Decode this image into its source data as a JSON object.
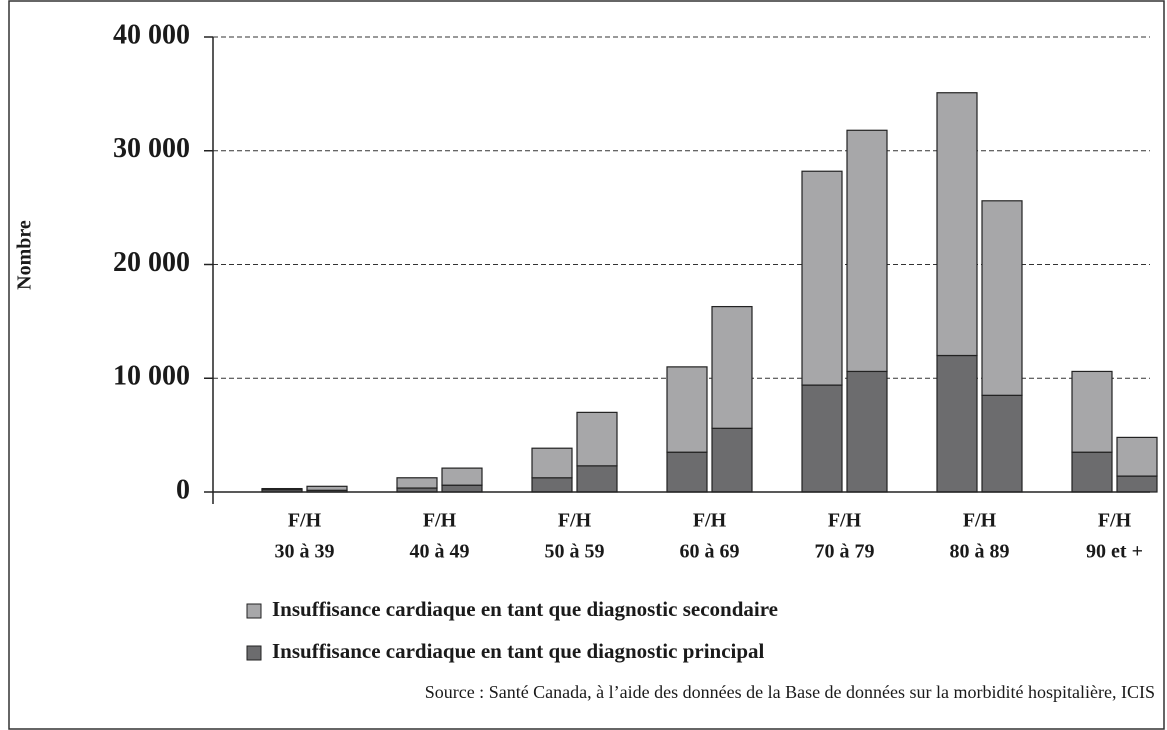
{
  "chart_data": {
    "type": "grouped-stacked-bar",
    "y_label": "Nombre",
    "source": "Source : Santé Canada, à l’aide des données de la Base de données sur la morbidité hospitalière, ICIS",
    "categories": [
      [
        "F/H",
        "30 à 39"
      ],
      [
        "F/H",
        "40 à 49"
      ],
      [
        "F/H",
        "50 à 59"
      ],
      [
        "F/H",
        "60 à 69"
      ],
      [
        "F/H",
        "70 à 79"
      ],
      [
        "F/H",
        "80 à 89"
      ],
      [
        "F/H",
        "90 et +"
      ]
    ],
    "series": [
      {
        "name": "Insuffisance cardiaque en tant que diagnostic secondaire",
        "color": "#a7a7a9",
        "values": [
          [
            100,
            350
          ],
          [
            900,
            1500
          ],
          [
            2600,
            4700
          ],
          [
            7500,
            10700
          ],
          [
            18800,
            21200
          ],
          [
            23100,
            17100
          ],
          [
            7100,
            3400
          ]
        ]
      },
      {
        "name": "Insuffisance cardiaque en tant que diagnostic principal",
        "color": "#6c6c6e",
        "values": [
          [
            200,
            150
          ],
          [
            350,
            600
          ],
          [
            1250,
            2300
          ],
          [
            3500,
            5600
          ],
          [
            9400,
            10600
          ],
          [
            12000,
            8500
          ],
          [
            3500,
            1400
          ]
        ]
      }
    ],
    "ylim": [
      0,
      40000
    ],
    "yticks": [
      0,
      {
        "value": 10000,
        "label": "10 000"
      },
      {
        "value": 20000,
        "label": "20 000"
      },
      {
        "value": 30000,
        "label": "30 000"
      },
      {
        "value": 40000,
        "label": "40 000"
      }
    ],
    "grid": true
  }
}
